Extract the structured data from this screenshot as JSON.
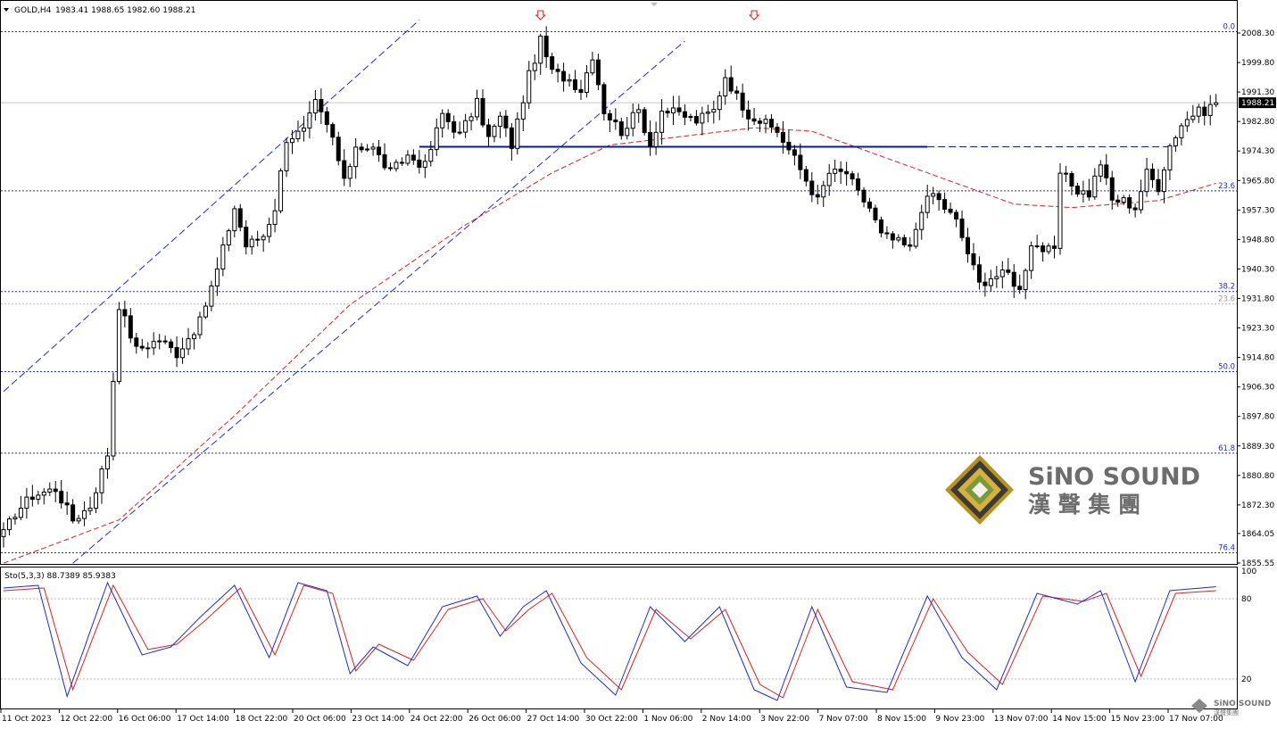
{
  "header": {
    "symbol": "GOLD,H4",
    "ohlc": "1983.41 1988.65 1982.60 1988.21"
  },
  "price_axis": {
    "labels": [
      "2008.30",
      "1999.80",
      "1991.30",
      "1982.80",
      "1974.30",
      "1965.80",
      "1957.30",
      "1948.80",
      "1940.30",
      "1931.80",
      "1923.30",
      "1914.80",
      "1906.30",
      "1897.80",
      "1889.30",
      "1880.80",
      "1872.30",
      "1864.05",
      "1855.55"
    ],
    "current_price": "1988.21"
  },
  "time_axis": {
    "labels": [
      "11 Oct 2023",
      "12 Oct 22:00",
      "16 Oct 06:00",
      "17 Oct 14:00",
      "18 Oct 22:00",
      "20 Oct 06:00",
      "23 Oct 14:00",
      "24 Oct 22:00",
      "26 Oct 06:00",
      "27 Oct 14:00",
      "30 Oct 22:00",
      "1 Nov 06:00",
      "2 Nov 14:00",
      "3 Nov 22:00",
      "7 Nov 07:00",
      "8 Nov 15:00",
      "9 Nov 23:00",
      "13 Nov 07:00",
      "14 Nov 15:00",
      "15 Nov 23:00",
      "17 Nov 07:00"
    ]
  },
  "fibonacci": [
    {
      "label": "0.0",
      "price": 2008.7
    },
    {
      "label": "23.6",
      "price": 1962.8
    },
    {
      "label": "38.2",
      "price": 1933.8
    },
    {
      "label": "50.0",
      "price": 1910.7
    },
    {
      "label": "61.8",
      "price": 1887.2
    },
    {
      "label": "76.4",
      "price": 1858.5
    }
  ],
  "secondary_fibo": {
    "label": "23.6",
    "price": 1930.2
  },
  "stochastic": {
    "label": "Sto(5,3,3) 88.7389 85.9383",
    "levels": [
      "100",
      "80",
      "20"
    ]
  },
  "logo": {
    "name": "SiNO SOUND",
    "chinese": "漢 聲 集 團",
    "small": "SiNO SOUND",
    "small_cn": "漢聲集團"
  },
  "colors": {
    "bull": "#ffffff",
    "bear": "#000000",
    "fibo": "#1a2bd8",
    "ma": "#e0201c",
    "stoch_main": "#1a2bd8",
    "stoch_signal": "#e0201c",
    "channel": "#1a2bd8",
    "arrow": "#e0201c"
  },
  "chart_data": {
    "type": "candlestick",
    "symbol": "GOLD",
    "timeframe": "H4",
    "ylim": [
      1855.55,
      2012.5
    ],
    "x_tick_labels": [
      "11 Oct 2023",
      "12 Oct 22:00",
      "16 Oct 06:00",
      "17 Oct 14:00",
      "18 Oct 22:00",
      "20 Oct 06:00",
      "23 Oct 14:00",
      "24 Oct 22:00",
      "26 Oct 06:00",
      "27 Oct 14:00",
      "30 Oct 22:00",
      "1 Nov 06:00",
      "2 Nov 14:00",
      "3 Nov 22:00",
      "7 Nov 07:00",
      "8 Nov 15:00",
      "9 Nov 23:00",
      "13 Nov 07:00",
      "14 Nov 15:00",
      "15 Nov 23:00",
      "17 Nov 07:00"
    ],
    "anchors": [
      {
        "i": 0,
        "price": 1864
      },
      {
        "i": 2,
        "price": 1870
      },
      {
        "i": 5,
        "price": 1875
      },
      {
        "i": 9,
        "price": 1877
      },
      {
        "i": 12,
        "price": 1868
      },
      {
        "i": 15,
        "price": 1872
      },
      {
        "i": 18,
        "price": 1887
      },
      {
        "i": 20,
        "price": 1930
      },
      {
        "i": 23,
        "price": 1917
      },
      {
        "i": 27,
        "price": 1920
      },
      {
        "i": 30,
        "price": 1916
      },
      {
        "i": 34,
        "price": 1925
      },
      {
        "i": 37,
        "price": 1940
      },
      {
        "i": 40,
        "price": 1958
      },
      {
        "i": 42,
        "price": 1947
      },
      {
        "i": 45,
        "price": 1950
      },
      {
        "i": 47,
        "price": 1958
      },
      {
        "i": 49,
        "price": 1978
      },
      {
        "i": 52,
        "price": 1980
      },
      {
        "i": 54,
        "price": 1988
      },
      {
        "i": 57,
        "price": 1978
      },
      {
        "i": 59,
        "price": 1965
      },
      {
        "i": 61,
        "price": 1976
      },
      {
        "i": 64,
        "price": 1975
      },
      {
        "i": 67,
        "price": 1968
      },
      {
        "i": 70,
        "price": 1973
      },
      {
        "i": 73,
        "price": 1970
      },
      {
        "i": 76,
        "price": 1985
      },
      {
        "i": 79,
        "price": 1979
      },
      {
        "i": 82,
        "price": 1988
      },
      {
        "i": 84,
        "price": 1978
      },
      {
        "i": 86,
        "price": 1984
      },
      {
        "i": 88,
        "price": 1976
      },
      {
        "i": 91,
        "price": 1996
      },
      {
        "i": 93,
        "price": 2006
      },
      {
        "i": 95,
        "price": 1997
      },
      {
        "i": 98,
        "price": 1995
      },
      {
        "i": 100,
        "price": 1992
      },
      {
        "i": 102,
        "price": 2002
      },
      {
        "i": 104,
        "price": 1986
      },
      {
        "i": 107,
        "price": 1980
      },
      {
        "i": 110,
        "price": 1986
      },
      {
        "i": 112,
        "price": 1976
      },
      {
        "i": 114,
        "price": 1986
      },
      {
        "i": 117,
        "price": 1985
      },
      {
        "i": 120,
        "price": 1983
      },
      {
        "i": 123,
        "price": 1986
      },
      {
        "i": 125,
        "price": 1996
      },
      {
        "i": 127,
        "price": 1990
      },
      {
        "i": 129,
        "price": 1985
      },
      {
        "i": 131,
        "price": 1983
      },
      {
        "i": 134,
        "price": 1980
      },
      {
        "i": 137,
        "price": 1972
      },
      {
        "i": 139,
        "price": 1966
      },
      {
        "i": 141,
        "price": 1960
      },
      {
        "i": 143,
        "price": 1968
      },
      {
        "i": 146,
        "price": 1968
      },
      {
        "i": 148,
        "price": 1962
      },
      {
        "i": 150,
        "price": 1958
      },
      {
        "i": 152,
        "price": 1950
      },
      {
        "i": 155,
        "price": 1948
      },
      {
        "i": 157,
        "price": 1946
      },
      {
        "i": 159,
        "price": 1958
      },
      {
        "i": 161,
        "price": 1962
      },
      {
        "i": 163,
        "price": 1958
      },
      {
        "i": 165,
        "price": 1954
      },
      {
        "i": 167,
        "price": 1945
      },
      {
        "i": 169,
        "price": 1936
      },
      {
        "i": 171,
        "price": 1938
      },
      {
        "i": 174,
        "price": 1939
      },
      {
        "i": 176,
        "price": 1934
      },
      {
        "i": 178,
        "price": 1948
      },
      {
        "i": 180,
        "price": 1946
      },
      {
        "i": 182,
        "price": 1945
      },
      {
        "i": 183,
        "price": 1968
      },
      {
        "i": 186,
        "price": 1963
      },
      {
        "i": 188,
        "price": 1962
      },
      {
        "i": 190,
        "price": 1971
      },
      {
        "i": 192,
        "price": 1960
      },
      {
        "i": 194,
        "price": 1960
      },
      {
        "i": 196,
        "price": 1958
      },
      {
        "i": 198,
        "price": 1968
      },
      {
        "i": 200,
        "price": 1964
      },
      {
        "i": 202,
        "price": 1976
      },
      {
        "i": 204,
        "price": 1982
      },
      {
        "i": 206,
        "price": 1985
      },
      {
        "i": 208,
        "price": 1986
      },
      {
        "i": 210,
        "price": 1988.21
      }
    ],
    "moving_average": [
      {
        "i": 0,
        "price": 1855.5
      },
      {
        "i": 20,
        "price": 1868
      },
      {
        "i": 40,
        "price": 1898
      },
      {
        "i": 60,
        "price": 1930
      },
      {
        "i": 80,
        "price": 1953
      },
      {
        "i": 95,
        "price": 1968
      },
      {
        "i": 105,
        "price": 1976
      },
      {
        "i": 115,
        "price": 1978
      },
      {
        "i": 130,
        "price": 1981
      },
      {
        "i": 140,
        "price": 1980
      },
      {
        "i": 150,
        "price": 1974
      },
      {
        "i": 160,
        "price": 1968
      },
      {
        "i": 175,
        "price": 1959
      },
      {
        "i": 185,
        "price": 1958
      },
      {
        "i": 200,
        "price": 1960
      },
      {
        "i": 210,
        "price": 1965
      }
    ],
    "horizontal_line": {
      "price": 1975.5
    },
    "stochastic_main": [
      {
        "i": 0,
        "value": 88
      },
      {
        "i": 6,
        "value": 90
      },
      {
        "i": 11,
        "value": 7
      },
      {
        "i": 18,
        "value": 92
      },
      {
        "i": 24,
        "value": 38
      },
      {
        "i": 29,
        "value": 44
      },
      {
        "i": 34,
        "value": 66
      },
      {
        "i": 40,
        "value": 90
      },
      {
        "i": 46,
        "value": 36
      },
      {
        "i": 51,
        "value": 92
      },
      {
        "i": 56,
        "value": 86
      },
      {
        "i": 60,
        "value": 24
      },
      {
        "i": 64,
        "value": 44
      },
      {
        "i": 70,
        "value": 30
      },
      {
        "i": 76,
        "value": 74
      },
      {
        "i": 82,
        "value": 82
      },
      {
        "i": 86,
        "value": 52
      },
      {
        "i": 90,
        "value": 74
      },
      {
        "i": 94,
        "value": 86
      },
      {
        "i": 100,
        "value": 32
      },
      {
        "i": 106,
        "value": 8
      },
      {
        "i": 112,
        "value": 74
      },
      {
        "i": 118,
        "value": 48
      },
      {
        "i": 124,
        "value": 74
      },
      {
        "i": 130,
        "value": 12
      },
      {
        "i": 134,
        "value": 4
      },
      {
        "i": 140,
        "value": 74
      },
      {
        "i": 146,
        "value": 14
      },
      {
        "i": 153,
        "value": 10
      },
      {
        "i": 160,
        "value": 82
      },
      {
        "i": 166,
        "value": 36
      },
      {
        "i": 172,
        "value": 12
      },
      {
        "i": 179,
        "value": 84
      },
      {
        "i": 186,
        "value": 76
      },
      {
        "i": 190,
        "value": 86
      },
      {
        "i": 196,
        "value": 18
      },
      {
        "i": 202,
        "value": 86
      },
      {
        "i": 210,
        "value": 89
      }
    ],
    "stochastic_signal": [
      {
        "i": 0,
        "value": 86
      },
      {
        "i": 7,
        "value": 88
      },
      {
        "i": 12,
        "value": 12
      },
      {
        "i": 19,
        "value": 90
      },
      {
        "i": 25,
        "value": 42
      },
      {
        "i": 30,
        "value": 46
      },
      {
        "i": 35,
        "value": 64
      },
      {
        "i": 41,
        "value": 88
      },
      {
        "i": 47,
        "value": 38
      },
      {
        "i": 52,
        "value": 90
      },
      {
        "i": 57,
        "value": 84
      },
      {
        "i": 61,
        "value": 26
      },
      {
        "i": 65,
        "value": 46
      },
      {
        "i": 71,
        "value": 34
      },
      {
        "i": 77,
        "value": 72
      },
      {
        "i": 83,
        "value": 80
      },
      {
        "i": 87,
        "value": 56
      },
      {
        "i": 91,
        "value": 72
      },
      {
        "i": 95,
        "value": 84
      },
      {
        "i": 101,
        "value": 36
      },
      {
        "i": 107,
        "value": 12
      },
      {
        "i": 113,
        "value": 72
      },
      {
        "i": 119,
        "value": 50
      },
      {
        "i": 125,
        "value": 72
      },
      {
        "i": 131,
        "value": 16
      },
      {
        "i": 135,
        "value": 6
      },
      {
        "i": 141,
        "value": 72
      },
      {
        "i": 147,
        "value": 18
      },
      {
        "i": 154,
        "value": 12
      },
      {
        "i": 161,
        "value": 80
      },
      {
        "i": 167,
        "value": 40
      },
      {
        "i": 173,
        "value": 16
      },
      {
        "i": 180,
        "value": 82
      },
      {
        "i": 187,
        "value": 78
      },
      {
        "i": 191,
        "value": 84
      },
      {
        "i": 197,
        "value": 22
      },
      {
        "i": 203,
        "value": 84
      },
      {
        "i": 210,
        "value": 86
      }
    ],
    "channel_lines": [
      {
        "i1": 0,
        "p1": 1905,
        "i2": 72,
        "p2": 2012
      },
      {
        "i1": 12,
        "p1": 1855.5,
        "i2": 118,
        "p2": 2006
      }
    ],
    "arrows": [
      {
        "i": 93,
        "price": 2012
      },
      {
        "i": 130,
        "price": 2009
      }
    ]
  }
}
